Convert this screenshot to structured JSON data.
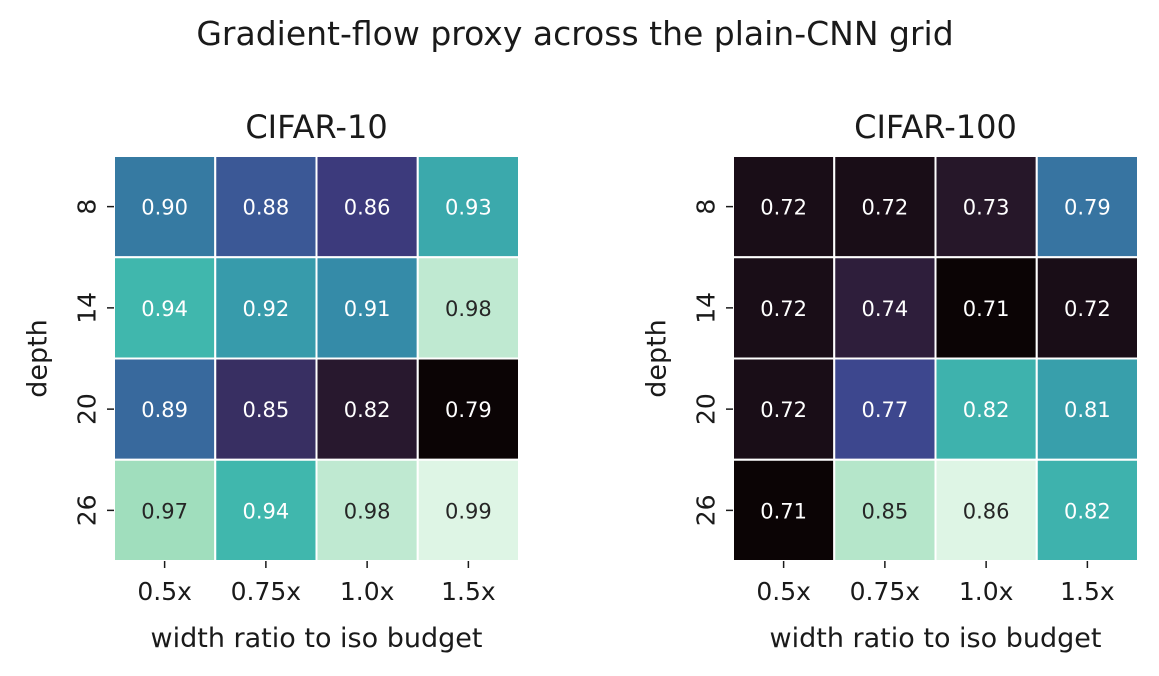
{
  "figure": {
    "suptitle": "Gradient-flow proxy across the plain-CNN grid"
  },
  "chart_data": [
    {
      "type": "heatmap",
      "title": "CIFAR-10",
      "xlabel": "width ratio to iso budget",
      "ylabel": "depth",
      "x_categories": [
        "0.5x",
        "0.75x",
        "1.0x",
        "1.5x"
      ],
      "y_categories": [
        "8",
        "14",
        "20",
        "26"
      ],
      "values": [
        [
          0.9,
          0.88,
          0.86,
          0.93
        ],
        [
          0.94,
          0.92,
          0.91,
          0.98
        ],
        [
          0.89,
          0.85,
          0.82,
          0.79
        ],
        [
          0.97,
          0.94,
          0.98,
          0.99
        ]
      ],
      "value_labels": [
        [
          "0.90",
          "0.88",
          "0.86",
          "0.93"
        ],
        [
          "0.94",
          "0.92",
          "0.91",
          "0.98"
        ],
        [
          "0.89",
          "0.85",
          "0.82",
          "0.79"
        ],
        [
          "0.97",
          "0.94",
          "0.98",
          "0.99"
        ]
      ],
      "colormap": "mako",
      "color_range": [
        0.79,
        0.99
      ],
      "colorbar": false
    },
    {
      "type": "heatmap",
      "title": "CIFAR-100",
      "xlabel": "width ratio to iso budget",
      "ylabel": "depth",
      "x_categories": [
        "0.5x",
        "0.75x",
        "1.0x",
        "1.5x"
      ],
      "y_categories": [
        "8",
        "14",
        "20",
        "26"
      ],
      "values": [
        [
          0.72,
          0.72,
          0.73,
          0.79
        ],
        [
          0.72,
          0.74,
          0.71,
          0.72
        ],
        [
          0.72,
          0.77,
          0.82,
          0.81
        ],
        [
          0.71,
          0.85,
          0.86,
          0.82
        ]
      ],
      "value_labels": [
        [
          "0.72",
          "0.72",
          "0.73",
          "0.79"
        ],
        [
          "0.72",
          "0.74",
          "0.71",
          "0.72"
        ],
        [
          "0.72",
          "0.77",
          "0.82",
          "0.81"
        ],
        [
          "0.71",
          "0.85",
          "0.86",
          "0.82"
        ]
      ],
      "colormap": "mako",
      "color_range": [
        0.71,
        0.86
      ],
      "colorbar": false
    }
  ]
}
